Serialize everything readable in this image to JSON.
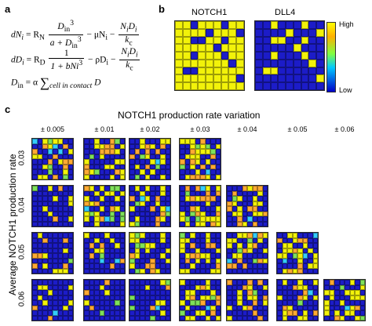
{
  "panels": {
    "a": "a",
    "b": "b",
    "c": "c"
  },
  "equations": {
    "dN_lhs": "dN",
    "dN_eq": "= R",
    "dN_sub": "N",
    "dN_frac_num": "D",
    "dN_frac_num_sub": "in",
    "dN_frac_num_sup": "3",
    "dN_frac_den": "a + D",
    "dN_frac_den_sub": "in",
    "dN_frac_den_sup": "3",
    "dN_mid": "− μN",
    "dN_mid_sub": "i",
    "dN_frac2_num": "N",
    "dN_frac2_num_rest": "D",
    "dN_frac2_den": "k",
    "dN_frac2_den_sub": "c",
    "dD_lhs": "dD",
    "dD_eq": "= R",
    "dD_sub": "D",
    "dD_frac_num": "1",
    "dD_frac_den": "1 + bNi",
    "dD_frac_den_sup": "3",
    "dD_mid": "− ρD",
    "dD_mid_sub": "i",
    "din_lhs": "D",
    "din_sub": "in",
    "din_eq": "= α",
    "din_sum": "∑",
    "din_sum_sub": "cell in contact",
    "din_rhs": "D"
  },
  "panel_b": {
    "titles": [
      "NOTCH1",
      "DLL4"
    ],
    "colorbar": {
      "high": "High",
      "low": "Low"
    }
  },
  "panel_c": {
    "title": "NOTCH1 production rate variation",
    "y_title": "Average NOTCH1 production rate",
    "columns": [
      "± 0.005",
      "± 0.01",
      "± 0.02",
      "± 0.03",
      "± 0.04",
      "± 0.05",
      "± 0.06"
    ],
    "rows": [
      "0.03",
      "0.04",
      "0.05",
      "0.06"
    ]
  },
  "colors": {
    "yellow": "#f2f20a",
    "blue": "#1c1cc8",
    "orange": "#ffaa33",
    "green": "#7ee05a",
    "cyan": "#33ccff"
  }
}
